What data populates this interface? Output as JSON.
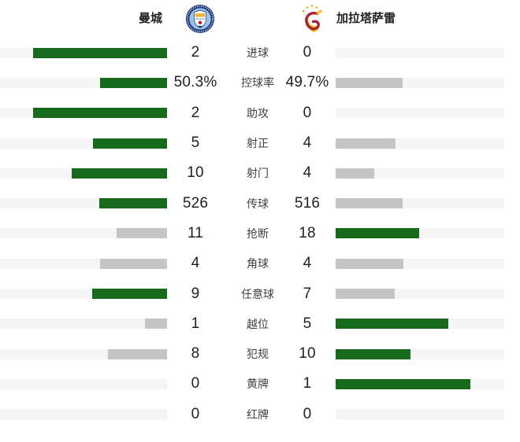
{
  "header": {
    "home_team": "曼城",
    "away_team": "加拉塔萨雷"
  },
  "colors": {
    "leader_bar": "#17691c",
    "trailer_bar": "#c5c5c5",
    "bar_track": "#f5f5f5",
    "value_text": "#212121",
    "label_text": "#404040",
    "mancity_navy": "#1e3c7d",
    "mancity_sky": "#9cc3e6",
    "galatasaray_red": "#a32638",
    "galatasaray_yellow": "#fdb913"
  },
  "chart_data": {
    "type": "bar",
    "orientation": "horizontal-paired",
    "legend": [
      "曼城",
      "加拉塔萨雷"
    ],
    "legend_position": "top",
    "grid": false,
    "categories": [
      "进球",
      "控球率",
      "助攻",
      "射正",
      "射门",
      "传球",
      "抢断",
      "角球",
      "任意球",
      "越位",
      "犯规",
      "黄牌",
      "红牌"
    ],
    "series": [
      {
        "name": "曼城",
        "values": [
          2,
          50.3,
          2,
          5,
          10,
          526,
          11,
          4,
          9,
          1,
          8,
          0,
          0
        ],
        "display": [
          "2",
          "50.3%",
          "2",
          "5",
          "10",
          "526",
          "11",
          "4",
          "9",
          "1",
          "8",
          "0",
          "0"
        ]
      },
      {
        "name": "加拉塔萨雷",
        "values": [
          0,
          49.7,
          0,
          4,
          4,
          516,
          18,
          4,
          7,
          5,
          10,
          1,
          0
        ],
        "display": [
          "0",
          "49.7%",
          "0",
          "4",
          "4",
          "516",
          "18",
          "4",
          "7",
          "5",
          "10",
          "1",
          "0"
        ]
      }
    ],
    "layout": {
      "bar_fill_rule": "value / (home + away)",
      "max_fill_fraction": 0.8,
      "higher_value_color": "#17691c",
      "lower_or_tie_color": "#c5c5c5",
      "zero_value": "empty track"
    }
  }
}
